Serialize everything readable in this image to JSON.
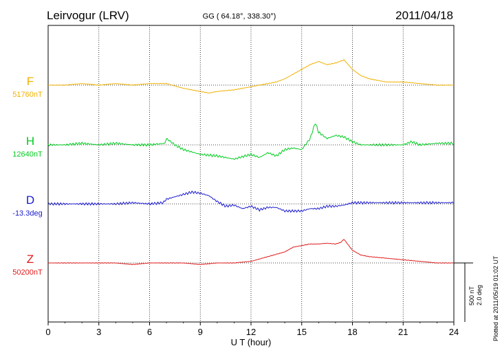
{
  "header": {
    "station": "Leirvogur (LRV)",
    "coords": "GG ( 64.18°, 338.30°)",
    "date": "2011/04/18"
  },
  "footer": {
    "scale_nt": "500 nT",
    "scale_deg": "2.0 deg",
    "plotted_at": "Plotted at 2011/05/19 01:02 UT"
  },
  "chart_data": {
    "type": "line",
    "title": "Leirvogur (LRV)",
    "xlabel": "U T (hour)",
    "ylabel": "",
    "xlim": [
      0,
      24
    ],
    "xticks": [
      0,
      3,
      6,
      9,
      12,
      15,
      18,
      21,
      24
    ],
    "grid": true,
    "series": [
      {
        "name": "F",
        "baseline": "51760nT",
        "color": "#f0b000",
        "x": [
          0,
          1,
          2,
          3,
          4,
          5,
          6,
          7,
          8,
          9,
          9.5,
          10,
          11,
          12,
          12.5,
          13,
          13.5,
          14,
          14.5,
          15,
          15.5,
          16,
          16.5,
          17,
          17.5,
          18,
          18.5,
          19,
          20,
          21,
          22,
          23,
          24
        ],
        "values": [
          0,
          0,
          10,
          0,
          10,
          0,
          10,
          10,
          -20,
          -40,
          -50,
          -40,
          -30,
          -10,
          0,
          10,
          20,
          40,
          70,
          100,
          130,
          150,
          130,
          140,
          160,
          100,
          60,
          40,
          20,
          20,
          10,
          0,
          0
        ]
      },
      {
        "name": "H",
        "baseline": "12640nT",
        "color": "#00cc20",
        "x": [
          0,
          1,
          2,
          3,
          4,
          5,
          6,
          6.9,
          7,
          7.5,
          8,
          9,
          10,
          11,
          12,
          12.5,
          13,
          13.5,
          14,
          14.5,
          15,
          15.5,
          15.8,
          16,
          16.5,
          17,
          17.5,
          18,
          18.5,
          19,
          20,
          21,
          21.5,
          22,
          23,
          24
        ],
        "values": [
          0,
          0,
          10,
          0,
          10,
          0,
          0,
          10,
          40,
          0,
          -30,
          -60,
          -70,
          -90,
          -60,
          -80,
          -50,
          -70,
          -30,
          -20,
          -30,
          40,
          140,
          80,
          40,
          60,
          50,
          20,
          0,
          0,
          0,
          0,
          20,
          0,
          10,
          10
        ]
      },
      {
        "name": "D",
        "baseline": "-13.3deg",
        "color": "#1a1ad0",
        "x": [
          0,
          1,
          2,
          3,
          4,
          5,
          6,
          6.8,
          7,
          7.5,
          8,
          8.5,
          9,
          9.5,
          10,
          10.5,
          11,
          11.5,
          12,
          12.5,
          13,
          13.5,
          14,
          14.5,
          15,
          15.5,
          16,
          16.5,
          17,
          17.5,
          18,
          19,
          20,
          21,
          22,
          23,
          24
        ],
        "values": [
          0,
          0,
          0,
          0,
          0,
          10,
          0,
          10,
          40,
          60,
          80,
          100,
          90,
          70,
          20,
          -20,
          -10,
          -40,
          -20,
          -50,
          -30,
          -30,
          -60,
          -60,
          -60,
          -40,
          -40,
          -20,
          -20,
          -10,
          10,
          10,
          10,
          10,
          10,
          10,
          10
        ],
        "scale": 0.75
      },
      {
        "name": "Z",
        "baseline": "50200nT",
        "color": "#e01818",
        "x": [
          0,
          1,
          2,
          3,
          4,
          5,
          6,
          7,
          8,
          9,
          10,
          11,
          12,
          13,
          14,
          14.5,
          15,
          15.5,
          16,
          16.5,
          17,
          17.3,
          17.5,
          18,
          18.5,
          19,
          20,
          21,
          22,
          23,
          24
        ],
        "values": [
          0,
          0,
          0,
          0,
          0,
          -10,
          0,
          0,
          0,
          -10,
          0,
          0,
          10,
          40,
          70,
          100,
          110,
          120,
          120,
          125,
          120,
          130,
          150,
          80,
          50,
          40,
          30,
          20,
          10,
          0,
          0
        ]
      }
    ]
  }
}
